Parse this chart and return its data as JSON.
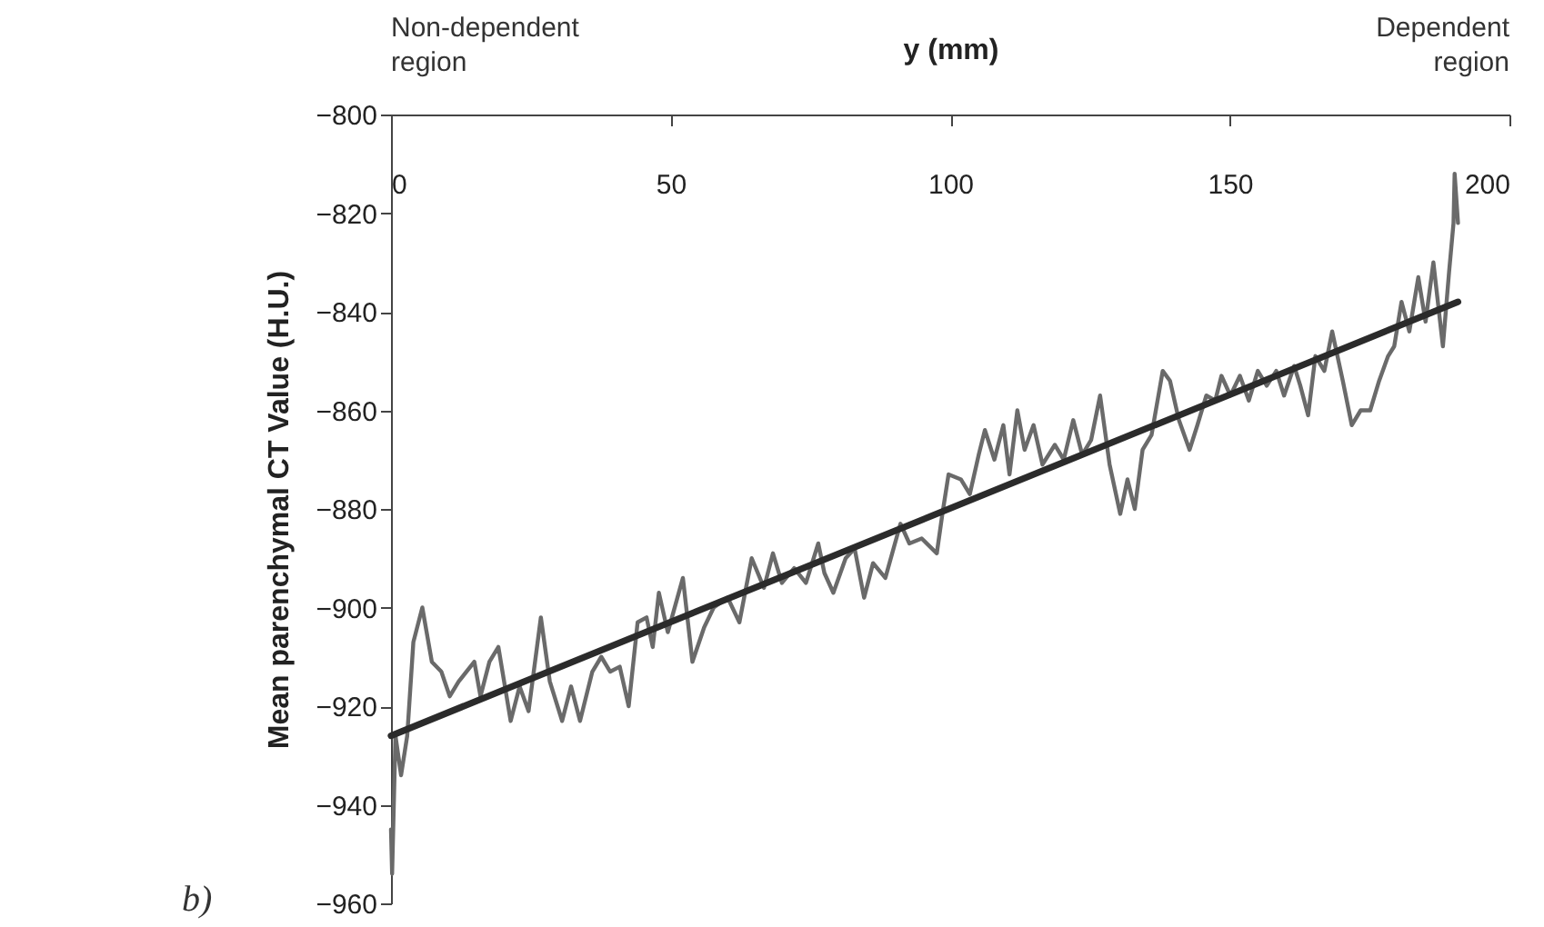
{
  "chart_data": {
    "type": "line",
    "xlabel": "y (mm)",
    "ylabel": "Mean parenchymal CT Value (H.U.)",
    "annotations": [
      "Non-dependent region",
      "Dependent region",
      "b)"
    ],
    "xlim": [
      0,
      200
    ],
    "xticks": [
      0,
      50,
      100,
      150,
      200
    ],
    "ylim": [
      -960,
      -800
    ],
    "yticks": [
      -960,
      -940,
      -920,
      -900,
      -880,
      -860,
      -840,
      -820,
      -800
    ],
    "grid": false,
    "marker": "none",
    "line_style": "solid",
    "series": [
      {
        "color": "#6a6a6a",
        "x": [
          0,
          0.2,
          0.8,
          1.8,
          2.9,
          4.0,
          5.6,
          7.3,
          9.0,
          10.5,
          12.1,
          14.9,
          16.0,
          17.6,
          19.2,
          21.4,
          23.0,
          24.6,
          26.8,
          28.4,
          30.6,
          32.2,
          33.8,
          36.0,
          37.6,
          39.2,
          40.9,
          42.5,
          44.1,
          45.7,
          46.8,
          47.9,
          49.5,
          52.2,
          53.9,
          56.0,
          57.7,
          60.2,
          62.3,
          64.5,
          66.7,
          68.3,
          69.9,
          72.1,
          74.2,
          76.4,
          77.5,
          79.1,
          81.3,
          82.9,
          84.6,
          86.2,
          88.4,
          91.1,
          92.7,
          94.9,
          97.6,
          98.6,
          99.7,
          101.9,
          103.5,
          105.1,
          106.2,
          107.9,
          109.5,
          110.6,
          112.0,
          113.3,
          114.9,
          116.5,
          118.7,
          120.3,
          122.0,
          123.6,
          125.2,
          126.8,
          128.5,
          130.4,
          131.7,
          133.0,
          134.4,
          136.0,
          138.0,
          139.3,
          140.9,
          142.8,
          144.2,
          145.8,
          147.4,
          148.5,
          150.1,
          151.8,
          153.4,
          155.0,
          156.6,
          158.3,
          159.7,
          161.5,
          162.6,
          164.0,
          165.3,
          166.9,
          168.3,
          170.2,
          171.8,
          173.4,
          175.1,
          176.7,
          178.3,
          179.4,
          180.7,
          182.1,
          183.7,
          185.0,
          186.4,
          188.1,
          189.2,
          190.0,
          190.2,
          190.8
        ],
        "values": [
          -945,
          -954,
          -926,
          -934,
          -926,
          -907,
          -900,
          -911,
          -913,
          -918,
          -915,
          -911,
          -918,
          -911,
          -908,
          -923,
          -916,
          -921,
          -902,
          -915,
          -923,
          -916,
          -923,
          -913,
          -910,
          -913,
          -912,
          -920,
          -903,
          -902,
          -908,
          -897,
          -905,
          -894,
          -911,
          -904,
          -900,
          -898,
          -903,
          -890,
          -896,
          -889,
          -895,
          -892,
          -895,
          -887,
          -893,
          -897,
          -890,
          -888,
          -898,
          -891,
          -894,
          -883,
          -887,
          -886,
          -889,
          -881,
          -873,
          -874,
          -877,
          -869,
          -864,
          -870,
          -863,
          -873,
          -860,
          -868,
          -863,
          -871,
          -867,
          -870,
          -862,
          -869,
          -866,
          -857,
          -871,
          -881,
          -874,
          -880,
          -868,
          -865,
          -852,
          -854,
          -862,
          -868,
          -863,
          -857,
          -858,
          -853,
          -857,
          -853,
          -858,
          -852,
          -855,
          -852,
          -857,
          -851,
          -855,
          -861,
          -849,
          -852,
          -844,
          -854,
          -863,
          -860,
          -860,
          -854,
          -849,
          -847,
          -838,
          -844,
          -833,
          -842,
          -830,
          -847,
          -832,
          -822,
          -812,
          -822
        ]
      },
      {
        "type": "line",
        "color": "#2b2b2b",
        "x": [
          0,
          190.8
        ],
        "values": [
          -926,
          -838
        ]
      }
    ]
  }
}
